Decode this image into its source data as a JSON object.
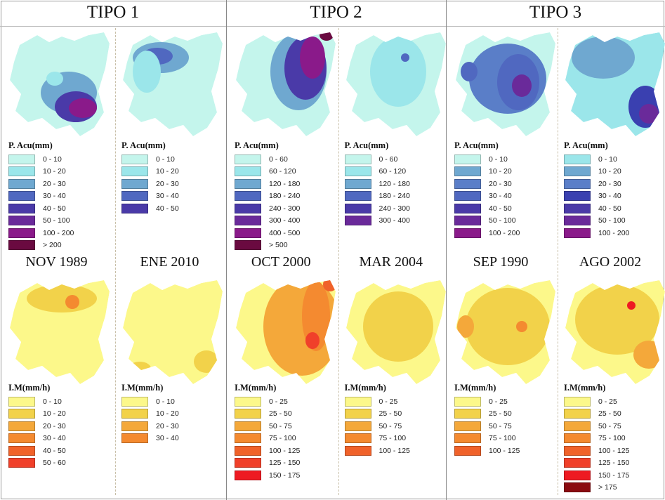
{
  "columns": [
    {
      "title": "TIPO 1",
      "panels": [
        {
          "event": "NOV 1989",
          "precip_legend": {
            "title": "P. Acu(mm)",
            "items": [
              {
                "label": "0 - 10",
                "color": "#c4f5ec"
              },
              {
                "label": "10 - 20",
                "color": "#9be6ea"
              },
              {
                "label": "20 - 30",
                "color": "#6fa8d0"
              },
              {
                "label": "30 - 40",
                "color": "#5068c0"
              },
              {
                "label": "40 - 50",
                "color": "#4a3aa8"
              },
              {
                "label": "50 - 100",
                "color": "#6a2a9a"
              },
              {
                "label": "100 - 200",
                "color": "#8a1a8a"
              },
              {
                "label": "> 200",
                "color": "#6a0a40"
              }
            ]
          },
          "intensity_legend": {
            "title": "I.M(mm/h)",
            "items": [
              {
                "label": "0 - 10",
                "color": "#fcf88a"
              },
              {
                "label": "10 - 20",
                "color": "#f2d24a"
              },
              {
                "label": "20 - 30",
                "color": "#f4a83a"
              },
              {
                "label": "30 - 40",
                "color": "#f48a30"
              },
              {
                "label": "40 - 50",
                "color": "#f0622a"
              },
              {
                "label": "50 - 60",
                "color": "#f0402a"
              }
            ]
          }
        },
        {
          "event": "ENE 2010",
          "precip_legend": {
            "title": "P. Acu(mm)",
            "items": [
              {
                "label": "0 - 10",
                "color": "#c4f5ec"
              },
              {
                "label": "10 - 20",
                "color": "#9be6ea"
              },
              {
                "label": "20 - 30",
                "color": "#6fa8d0"
              },
              {
                "label": "30 - 40",
                "color": "#5068c0"
              },
              {
                "label": "40 - 50",
                "color": "#4a3aa8"
              }
            ]
          },
          "intensity_legend": {
            "title": "I.M(mm/h)",
            "items": [
              {
                "label": "0 - 10",
                "color": "#fcf88a"
              },
              {
                "label": "10 - 20",
                "color": "#f2d24a"
              },
              {
                "label": "20 - 30",
                "color": "#f4a83a"
              },
              {
                "label": "30 - 40",
                "color": "#f48a30"
              }
            ]
          }
        }
      ]
    },
    {
      "title": "TIPO 2",
      "panels": [
        {
          "event": "OCT 2000",
          "precip_legend": {
            "title": "P. Acu(mm)",
            "items": [
              {
                "label": "0 - 60",
                "color": "#c4f5ec"
              },
              {
                "label": "60 - 120",
                "color": "#9be6ea"
              },
              {
                "label": "120 - 180",
                "color": "#6fa8d0"
              },
              {
                "label": "180 - 240",
                "color": "#5068c0"
              },
              {
                "label": "240 - 300",
                "color": "#4a3aa8"
              },
              {
                "label": "300 - 400",
                "color": "#6a2a9a"
              },
              {
                "label": "400 - 500",
                "color": "#8a1a8a"
              },
              {
                "label": "> 500",
                "color": "#6a0a40"
              }
            ]
          },
          "intensity_legend": {
            "title": "I.M(mm/h)",
            "items": [
              {
                "label": "0 - 25",
                "color": "#fcf88a"
              },
              {
                "label": "25 - 50",
                "color": "#f2d24a"
              },
              {
                "label": "50 - 75",
                "color": "#f4a83a"
              },
              {
                "label": "75 - 100",
                "color": "#f48a30"
              },
              {
                "label": "100 - 125",
                "color": "#f0622a"
              },
              {
                "label": "125 - 150",
                "color": "#f0402a"
              },
              {
                "label": "150 - 175",
                "color": "#ee1a22"
              }
            ]
          }
        },
        {
          "event": "MAR 2004",
          "precip_legend": {
            "title": "P. Acu(mm)",
            "items": [
              {
                "label": "0 - 60",
                "color": "#c4f5ec"
              },
              {
                "label": "60 - 120",
                "color": "#9be6ea"
              },
              {
                "label": "120 - 180",
                "color": "#6fa8d0"
              },
              {
                "label": "180 - 240",
                "color": "#5068c0"
              },
              {
                "label": "240 - 300",
                "color": "#4a3aa8"
              },
              {
                "label": "300 - 400",
                "color": "#6a2a9a"
              }
            ]
          },
          "intensity_legend": {
            "title": "I.M(mm/h)",
            "items": [
              {
                "label": "0 - 25",
                "color": "#fcf88a"
              },
              {
                "label": "25 - 50",
                "color": "#f2d24a"
              },
              {
                "label": "50 - 75",
                "color": "#f4a83a"
              },
              {
                "label": "75 - 100",
                "color": "#f48a30"
              },
              {
                "label": "100 - 125",
                "color": "#f0622a"
              }
            ]
          }
        }
      ]
    },
    {
      "title": "TIPO 3",
      "panels": [
        {
          "event": "SEP 1990",
          "precip_legend": {
            "title": "P. Acu(mm)",
            "items": [
              {
                "label": "0 - 10",
                "color": "#c4f5ec"
              },
              {
                "label": "10 - 20",
                "color": "#6fa8d0"
              },
              {
                "label": "20 - 30",
                "color": "#5a7ec8"
              },
              {
                "label": "30 - 40",
                "color": "#5068c0"
              },
              {
                "label": "40 - 50",
                "color": "#4a3aa8"
              },
              {
                "label": "50 - 100",
                "color": "#6a2a9a"
              },
              {
                "label": "100 - 200",
                "color": "#8a1a8a"
              }
            ]
          },
          "intensity_legend": {
            "title": "I.M(mm/h)",
            "items": [
              {
                "label": "0 - 25",
                "color": "#fcf88a"
              },
              {
                "label": "25 - 50",
                "color": "#f2d24a"
              },
              {
                "label": "50 - 75",
                "color": "#f4a83a"
              },
              {
                "label": "75 - 100",
                "color": "#f48a30"
              },
              {
                "label": "100 - 125",
                "color": "#f0622a"
              }
            ]
          }
        },
        {
          "event": "AGO 2002",
          "precip_legend": {
            "title": "P. Acu(mm)",
            "items": [
              {
                "label": "0 - 10",
                "color": "#9be6ea"
              },
              {
                "label": "10 - 20",
                "color": "#6fa8d0"
              },
              {
                "label": "20 - 30",
                "color": "#5a7ec8"
              },
              {
                "label": "30 - 40",
                "color": "#3a40b0"
              },
              {
                "label": "40 - 50",
                "color": "#4a3aa8"
              },
              {
                "label": "50 - 100",
                "color": "#6a2a9a"
              },
              {
                "label": "100 - 200",
                "color": "#8a1a8a"
              }
            ]
          },
          "intensity_legend": {
            "title": "I.M(mm/h)",
            "items": [
              {
                "label": "0 - 25",
                "color": "#fcf88a"
              },
              {
                "label": "25 - 50",
                "color": "#f2d24a"
              },
              {
                "label": "50 - 75",
                "color": "#f4a83a"
              },
              {
                "label": "75 - 100",
                "color": "#f48a30"
              },
              {
                "label": "100 - 125",
                "color": "#f0622a"
              },
              {
                "label": "125 - 150",
                "color": "#f0402a"
              },
              {
                "label": "150 - 175",
                "color": "#ee1a22"
              },
              {
                "label": "> 175",
                "color": "#8a0a10"
              }
            ]
          }
        }
      ]
    }
  ]
}
